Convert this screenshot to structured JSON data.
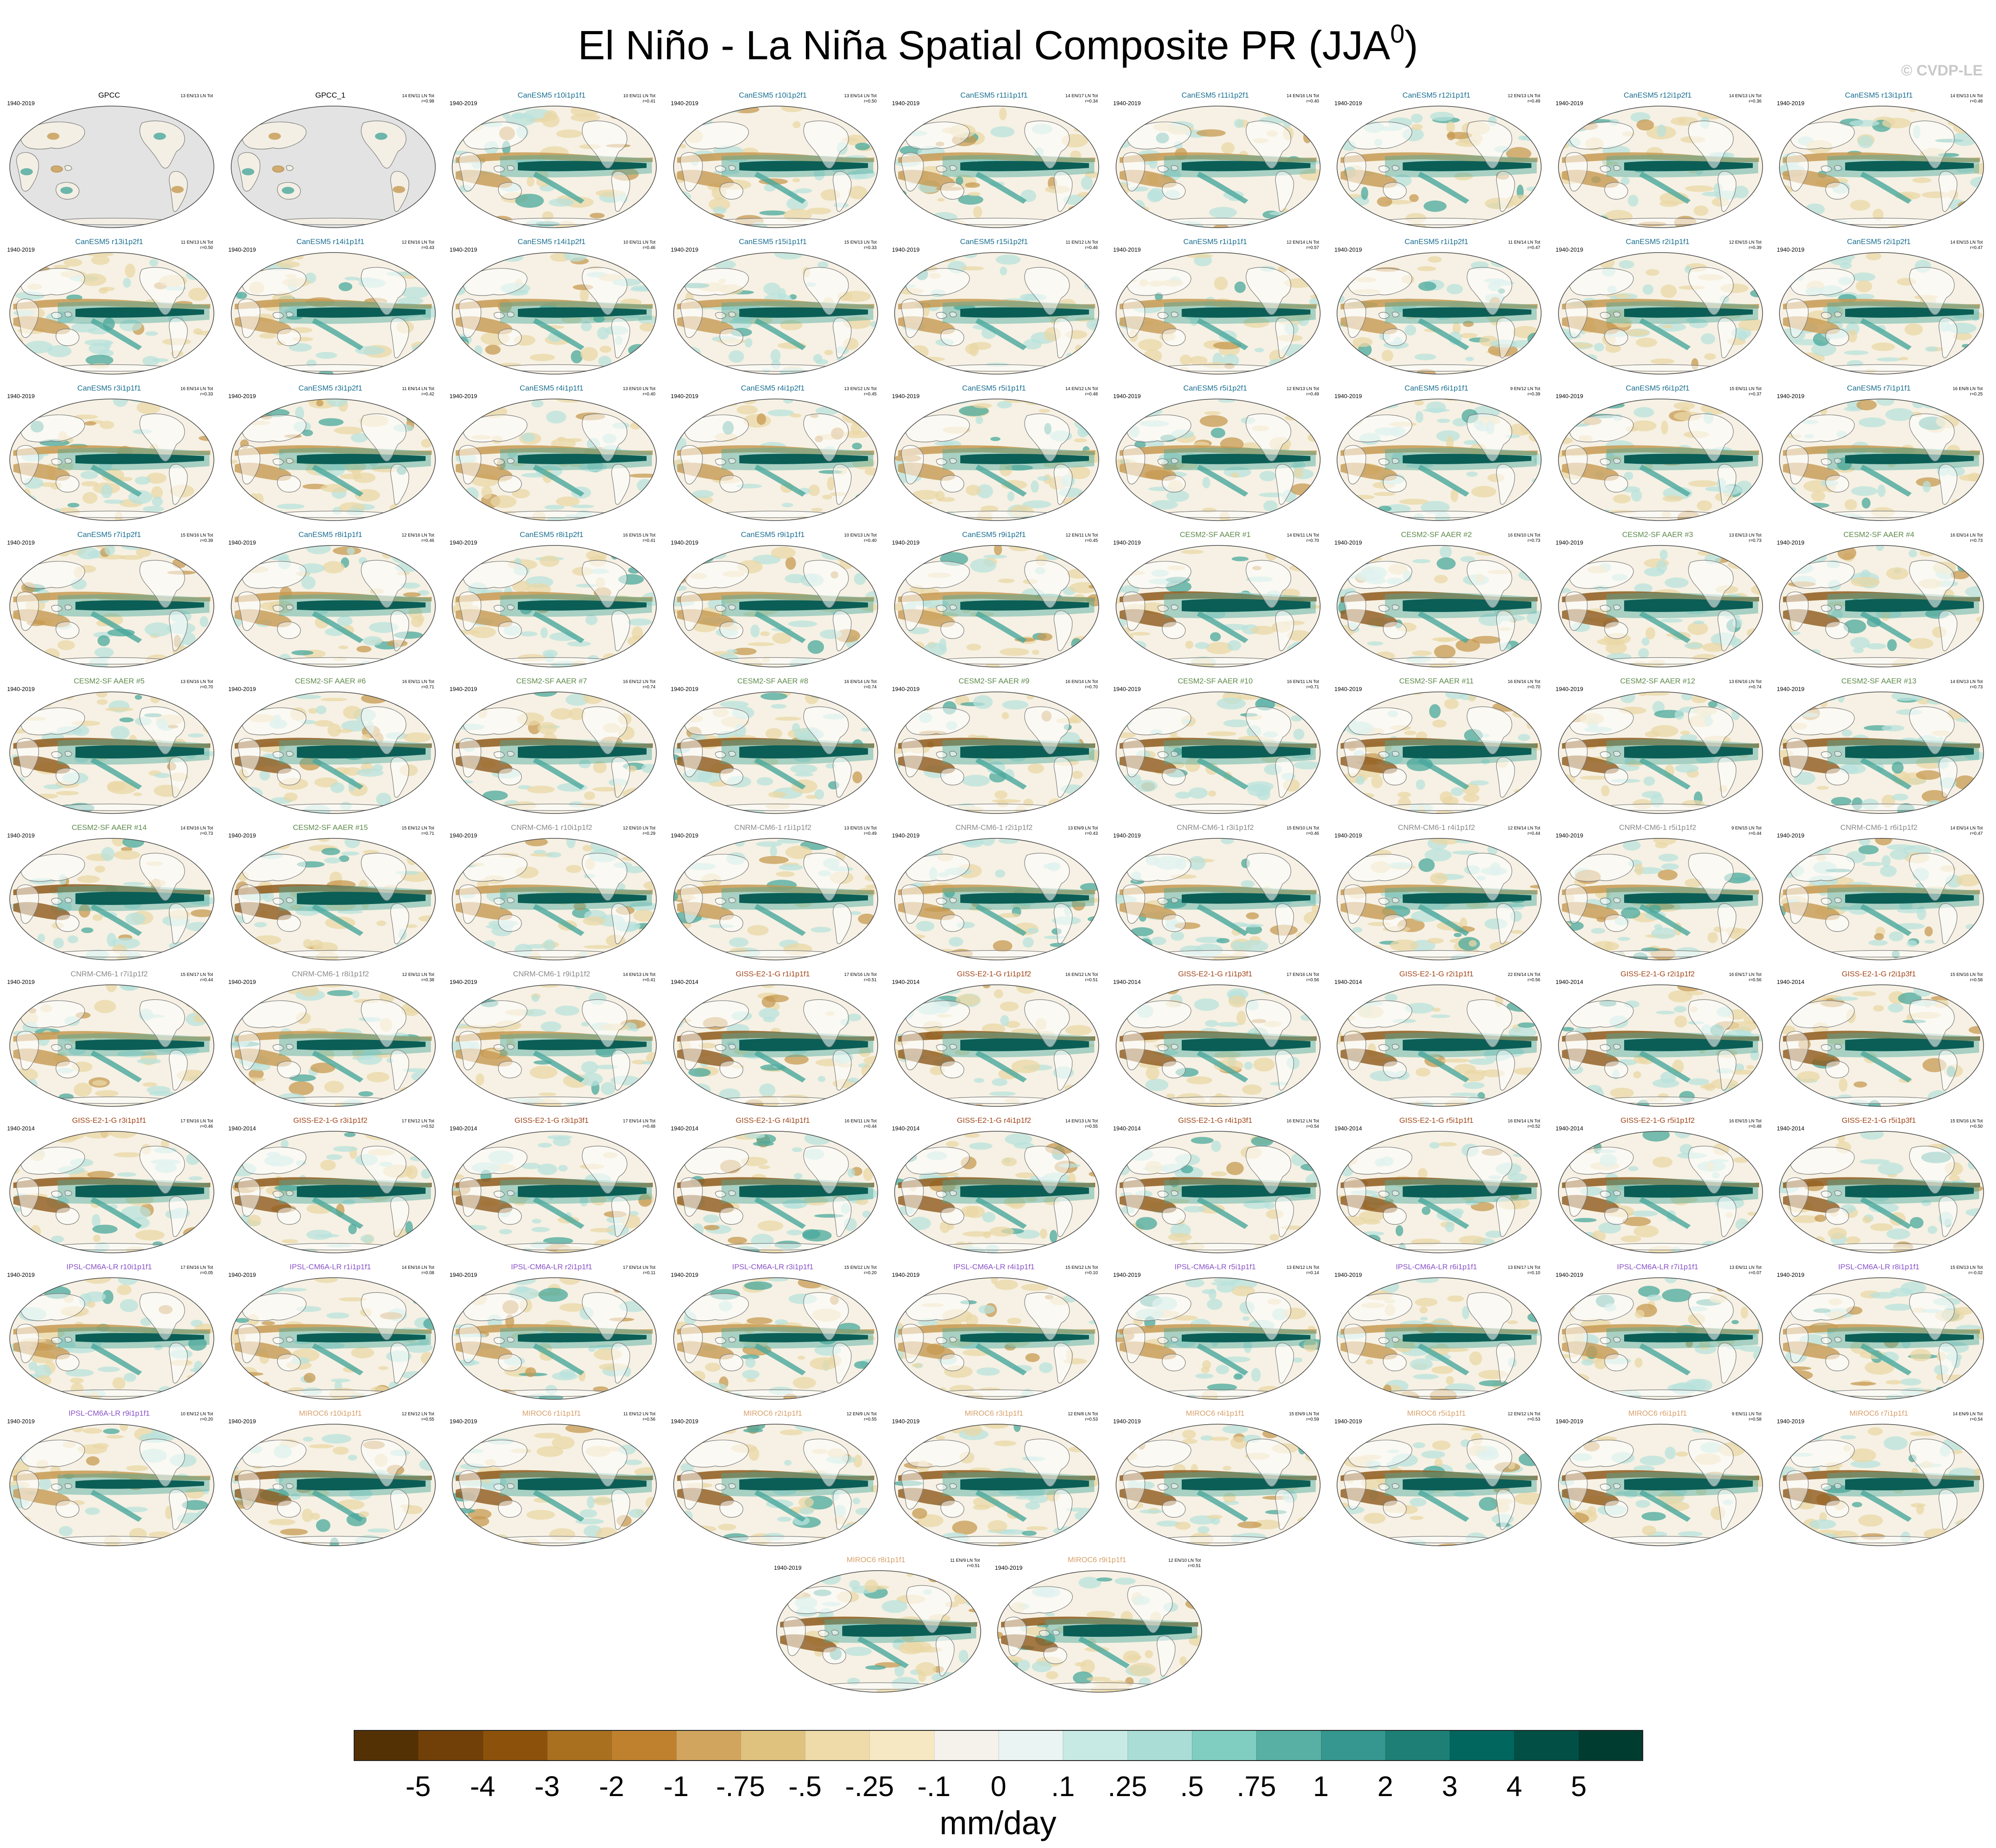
{
  "title": {
    "main": "El Niño - La Niña Spatial Composite PR (JJA",
    "superscript": "0",
    "close": ")"
  },
  "copyright": "© CVDP-LE",
  "colors": {
    "GPCC": "#000000",
    "CanESM5": "#1a6f91",
    "CESM2-SF AAER": "#5d8a4a",
    "CNRM-CM6-1": "#8a8a8a",
    "GISS-E2-1-G": "#a0461a",
    "IPSL-CM6A-LR": "#8a52c8",
    "MIROC6": "#d8a06a"
  },
  "map_style": {
    "ocean_base": "#f6f1e4",
    "land": "#ffffff",
    "missing": "#e3e3e3",
    "coast": "#7a7a7a",
    "dry_strong": "#8e5a1c",
    "dry_mid": "#c79a52",
    "dry_weak": "#ead7a6",
    "wet_weak": "#b8e2dc",
    "wet_mid": "#4aa89c",
    "wet_strong": "#0b5e56"
  },
  "panels": [
    {
      "name": "GPCC",
      "model": "GPCC",
      "period": "1940-2019",
      "counts": "13 EN/13 LN Tot",
      "r": "",
      "obs": true
    },
    {
      "name": "GPCC_1",
      "model": "GPCC",
      "period": "",
      "counts": "14 EN/11 LN Tot",
      "r": "r=0.98",
      "obs": true
    },
    {
      "name": "CanESM5 r10i1p1f1",
      "model": "CanESM5",
      "period": "1940-2019",
      "counts": "10 EN/11 LN Tot",
      "r": "r=0.41"
    },
    {
      "name": "CanESM5 r10i1p2f1",
      "model": "CanESM5",
      "period": "1940-2019",
      "counts": "13 EN/14 LN Tot",
      "r": "r=0.50"
    },
    {
      "name": "CanESM5 r11i1p1f1",
      "model": "CanESM5",
      "period": "1940-2019",
      "counts": "14 EN/17 LN Tot",
      "r": "r=0.34"
    },
    {
      "name": "CanESM5 r11i1p2f1",
      "model": "CanESM5",
      "period": "1940-2019",
      "counts": "14 EN/16 LN Tot",
      "r": "r=0.40"
    },
    {
      "name": "CanESM5 r12i1p1f1",
      "model": "CanESM5",
      "period": "1940-2019",
      "counts": "12 EN/13 LN Tot",
      "r": "r=0.49"
    },
    {
      "name": "CanESM5 r12i1p2f1",
      "model": "CanESM5",
      "period": "1940-2019",
      "counts": "14 EN/13 LN Tot",
      "r": "r=0.36"
    },
    {
      "name": "CanESM5 r13i1p1f1",
      "model": "CanESM5",
      "period": "1940-2019",
      "counts": "14 EN/13 LN Tot",
      "r": "r=0.48"
    },
    {
      "name": "CanESM5 r13i1p2f1",
      "model": "CanESM5",
      "period": "1940-2019",
      "counts": "11 EN/13 LN Tot",
      "r": "r=0.50"
    },
    {
      "name": "CanESM5 r14i1p1f1",
      "model": "CanESM5",
      "period": "1940-2019",
      "counts": "12 EN/16 LN Tot",
      "r": "r=0.43"
    },
    {
      "name": "CanESM5 r14i1p2f1",
      "model": "CanESM5",
      "period": "1940-2019",
      "counts": "10 EN/11 LN Tot",
      "r": "r=0.46"
    },
    {
      "name": "CanESM5 r15i1p1f1",
      "model": "CanESM5",
      "period": "1940-2019",
      "counts": "15 EN/13 LN Tot",
      "r": "r=0.33"
    },
    {
      "name": "CanESM5 r15i1p2f1",
      "model": "CanESM5",
      "period": "1940-2019",
      "counts": "11 EN/12 LN Tot",
      "r": "r=0.46"
    },
    {
      "name": "CanESM5 r1i1p1f1",
      "model": "CanESM5",
      "period": "1940-2019",
      "counts": "12 EN/14 LN Tot",
      "r": "r=0.57"
    },
    {
      "name": "CanESM5 r1i1p2f1",
      "model": "CanESM5",
      "period": "1940-2019",
      "counts": "11 EN/14 LN Tot",
      "r": "r=0.47"
    },
    {
      "name": "CanESM5 r2i1p1f1",
      "model": "CanESM5",
      "period": "1940-2019",
      "counts": "12 EN/15 LN Tot",
      "r": "r=0.39"
    },
    {
      "name": "CanESM5 r2i1p2f1",
      "model": "CanESM5",
      "period": "1940-2019",
      "counts": "14 EN/15 LN Tot",
      "r": "r=0.47"
    },
    {
      "name": "CanESM5 r3i1p1f1",
      "model": "CanESM5",
      "period": "1940-2019",
      "counts": "16 EN/14 LN Tot",
      "r": "r=0.33"
    },
    {
      "name": "CanESM5 r3i1p2f1",
      "model": "CanESM5",
      "period": "1940-2019",
      "counts": "11 EN/14 LN Tot",
      "r": "r=0.42"
    },
    {
      "name": "CanESM5 r4i1p1f1",
      "model": "CanESM5",
      "period": "1940-2019",
      "counts": "13 EN/10 LN Tot",
      "r": "r=0.40"
    },
    {
      "name": "CanESM5 r4i1p2f1",
      "model": "CanESM5",
      "period": "1940-2019",
      "counts": "13 EN/12 LN Tot",
      "r": "r=0.45"
    },
    {
      "name": "CanESM5 r5i1p1f1",
      "model": "CanESM5",
      "period": "1940-2019",
      "counts": "14 EN/12 LN Tot",
      "r": "r=0.48"
    },
    {
      "name": "CanESM5 r5i1p2f1",
      "model": "CanESM5",
      "period": "1940-2019",
      "counts": "12 EN/13 LN Tot",
      "r": "r=0.49"
    },
    {
      "name": "CanESM5 r6i1p1f1",
      "model": "CanESM5",
      "period": "1940-2019",
      "counts": "9 EN/12 LN Tot",
      "r": "r=0.39"
    },
    {
      "name": "CanESM5 r6i1p2f1",
      "model": "CanESM5",
      "period": "1940-2019",
      "counts": "15 EN/11 LN Tot",
      "r": "r=0.37"
    },
    {
      "name": "CanESM5 r7i1p1f1",
      "model": "CanESM5",
      "period": "1940-2019",
      "counts": "16 EN/8 LN Tot",
      "r": "r=0.25"
    },
    {
      "name": "CanESM5 r7i1p2f1",
      "model": "CanESM5",
      "period": "1940-2019",
      "counts": "15 EN/16 LN Tot",
      "r": "r=0.39"
    },
    {
      "name": "CanESM5 r8i1p1f1",
      "model": "CanESM5",
      "period": "1940-2019",
      "counts": "12 EN/16 LN Tot",
      "r": "r=0.46"
    },
    {
      "name": "CanESM5 r8i1p2f1",
      "model": "CanESM5",
      "period": "1940-2019",
      "counts": "16 EN/15 LN Tot",
      "r": "r=0.41"
    },
    {
      "name": "CanESM5 r9i1p1f1",
      "model": "CanESM5",
      "period": "1940-2019",
      "counts": "10 EN/13 LN Tot",
      "r": "r=0.40"
    },
    {
      "name": "CanESM5 r9i1p2f1",
      "model": "CanESM5",
      "period": "1940-2019",
      "counts": "12 EN/11 LN Tot",
      "r": "r=0.45"
    },
    {
      "name": "CESM2-SF AAER #1",
      "model": "CESM2-SF AAER",
      "period": "1940-2019",
      "counts": "14 EN/11 LN Tot",
      "r": "r=0.70"
    },
    {
      "name": "CESM2-SF AAER #2",
      "model": "CESM2-SF AAER",
      "period": "1940-2019",
      "counts": "16 EN/10 LN Tot",
      "r": "r=0.73"
    },
    {
      "name": "CESM2-SF AAER #3",
      "model": "CESM2-SF AAER",
      "period": "1940-2019",
      "counts": "13 EN/13 LN Tot",
      "r": "r=0.73"
    },
    {
      "name": "CESM2-SF AAER #4",
      "model": "CESM2-SF AAER",
      "period": "1940-2019",
      "counts": "16 EN/14 LN Tot",
      "r": "r=0.73"
    },
    {
      "name": "CESM2-SF AAER #5",
      "model": "CESM2-SF AAER",
      "period": "1940-2019",
      "counts": "13 EN/16 LN Tot",
      "r": "r=0.70"
    },
    {
      "name": "CESM2-SF AAER #6",
      "model": "CESM2-SF AAER",
      "period": "1940-2019",
      "counts": "16 EN/11 LN Tot",
      "r": "r=0.71"
    },
    {
      "name": "CESM2-SF AAER #7",
      "model": "CESM2-SF AAER",
      "period": "1940-2019",
      "counts": "16 EN/12 LN Tot",
      "r": "r=0.74"
    },
    {
      "name": "CESM2-SF AAER #8",
      "model": "CESM2-SF AAER",
      "period": "1940-2019",
      "counts": "16 EN/14 LN Tot",
      "r": "r=0.74"
    },
    {
      "name": "CESM2-SF AAER #9",
      "model": "CESM2-SF AAER",
      "period": "1940-2019",
      "counts": "16 EN/14 LN Tot",
      "r": "r=0.70"
    },
    {
      "name": "CESM2-SF AAER #10",
      "model": "CESM2-SF AAER",
      "period": "1940-2019",
      "counts": "16 EN/11 LN Tot",
      "r": "r=0.71"
    },
    {
      "name": "CESM2-SF AAER #11",
      "model": "CESM2-SF AAER",
      "period": "1940-2019",
      "counts": "16 EN/16 LN Tot",
      "r": "r=0.70"
    },
    {
      "name": "CESM2-SF AAER #12",
      "model": "CESM2-SF AAER",
      "period": "1940-2019",
      "counts": "13 EN/16 LN Tot",
      "r": "r=0.74"
    },
    {
      "name": "CESM2-SF AAER #13",
      "model": "CESM2-SF AAER",
      "period": "1940-2019",
      "counts": "14 EN/13 LN Tot",
      "r": "r=0.73"
    },
    {
      "name": "CESM2-SF AAER #14",
      "model": "CESM2-SF AAER",
      "period": "1940-2019",
      "counts": "14 EN/16 LN Tot",
      "r": "r=0.73"
    },
    {
      "name": "CESM2-SF AAER #15",
      "model": "CESM2-SF AAER",
      "period": "1940-2019",
      "counts": "15 EN/12 LN Tot",
      "r": "r=0.71"
    },
    {
      "name": "CNRM-CM6-1 r10i1p1f2",
      "model": "CNRM-CM6-1",
      "period": "1940-2019",
      "counts": "12 EN/10 LN Tot",
      "r": "r=0.29"
    },
    {
      "name": "CNRM-CM6-1 r1i1p1f2",
      "model": "CNRM-CM6-1",
      "period": "1940-2019",
      "counts": "13 EN/15 LN Tot",
      "r": "r=0.49"
    },
    {
      "name": "CNRM-CM6-1 r2i1p1f2",
      "model": "CNRM-CM6-1",
      "period": "1940-2019",
      "counts": "13 EN/9 LN Tot",
      "r": "r=0.43"
    },
    {
      "name": "CNRM-CM6-1 r3i1p1f2",
      "model": "CNRM-CM6-1",
      "period": "1940-2019",
      "counts": "15 EN/10 LN Tot",
      "r": "r=0.46"
    },
    {
      "name": "CNRM-CM6-1 r4i1p1f2",
      "model": "CNRM-CM6-1",
      "period": "1940-2019",
      "counts": "12 EN/14 LN Tot",
      "r": "r=0.44"
    },
    {
      "name": "CNRM-CM6-1 r5i1p1f2",
      "model": "CNRM-CM6-1",
      "period": "1940-2019",
      "counts": "9 EN/15 LN Tot",
      "r": "r=0.44"
    },
    {
      "name": "CNRM-CM6-1 r6i1p1f2",
      "model": "CNRM-CM6-1",
      "period": "1940-2019",
      "counts": "14 EN/14 LN Tot",
      "r": "r=0.47"
    },
    {
      "name": "CNRM-CM6-1 r7i1p1f2",
      "model": "CNRM-CM6-1",
      "period": "1940-2019",
      "counts": "15 EN/17 LN Tot",
      "r": "r=0.44"
    },
    {
      "name": "CNRM-CM6-1 r8i1p1f2",
      "model": "CNRM-CM6-1",
      "period": "1940-2019",
      "counts": "12 EN/11 LN Tot",
      "r": "r=0.38"
    },
    {
      "name": "CNRM-CM6-1 r9i1p1f2",
      "model": "CNRM-CM6-1",
      "period": "1940-2019",
      "counts": "14 EN/13 LN Tot",
      "r": "r=0.41"
    },
    {
      "name": "GISS-E2-1-G r1i1p1f1",
      "model": "GISS-E2-1-G",
      "period": "1940-2014",
      "counts": "17 EN/16 LN Tot",
      "r": "r=0.51"
    },
    {
      "name": "GISS-E2-1-G r1i1p1f2",
      "model": "GISS-E2-1-G",
      "period": "1940-2014",
      "counts": "16 EN/12 LN Tot",
      "r": "r=0.51"
    },
    {
      "name": "GISS-E2-1-G r1i1p3f1",
      "model": "GISS-E2-1-G",
      "period": "1940-2014",
      "counts": "17 EN/16 LN Tot",
      "r": "r=0.56"
    },
    {
      "name": "GISS-E2-1-G r2i1p1f1",
      "model": "GISS-E2-1-G",
      "period": "1940-2014",
      "counts": "22 EN/14 LN Tot",
      "r": "r=0.56"
    },
    {
      "name": "GISS-E2-1-G r2i1p1f2",
      "model": "GISS-E2-1-G",
      "period": "1940-2014",
      "counts": "16 EN/17 LN Tot",
      "r": "r=0.56"
    },
    {
      "name": "GISS-E2-1-G r2i1p3f1",
      "model": "GISS-E2-1-G",
      "period": "1940-2014",
      "counts": "15 EN/16 LN Tot",
      "r": "r=0.58"
    },
    {
      "name": "GISS-E2-1-G r3i1p1f1",
      "model": "GISS-E2-1-G",
      "period": "1940-2014",
      "counts": "17 EN/16 LN Tot",
      "r": "r=0.46"
    },
    {
      "name": "GISS-E2-1-G r3i1p1f2",
      "model": "GISS-E2-1-G",
      "period": "1940-2014",
      "counts": "17 EN/12 LN Tot",
      "r": "r=0.52"
    },
    {
      "name": "GISS-E2-1-G r3i1p3f1",
      "model": "GISS-E2-1-G",
      "period": "1940-2014",
      "counts": "17 EN/14 LN Tot",
      "r": "r=0.48"
    },
    {
      "name": "GISS-E2-1-G r4i1p1f1",
      "model": "GISS-E2-1-G",
      "period": "1940-2014",
      "counts": "16 EN/11 LN Tot",
      "r": "r=0.44"
    },
    {
      "name": "GISS-E2-1-G r4i1p1f2",
      "model": "GISS-E2-1-G",
      "period": "1940-2014",
      "counts": "14 EN/13 LN Tot",
      "r": "r=0.55"
    },
    {
      "name": "GISS-E2-1-G r4i1p3f1",
      "model": "GISS-E2-1-G",
      "period": "1940-2014",
      "counts": "16 EN/12 LN Tot",
      "r": "r=0.54"
    },
    {
      "name": "GISS-E2-1-G r5i1p1f1",
      "model": "GISS-E2-1-G",
      "period": "1940-2014",
      "counts": "16 EN/14 LN Tot",
      "r": "r=0.52"
    },
    {
      "name": "GISS-E2-1-G r5i1p1f2",
      "model": "GISS-E2-1-G",
      "period": "1940-2014",
      "counts": "16 EN/15 LN Tot",
      "r": "r=0.48"
    },
    {
      "name": "GISS-E2-1-G r5i1p3f1",
      "model": "GISS-E2-1-G",
      "period": "1940-2014",
      "counts": "15 EN/16 LN Tot",
      "r": "r=0.50"
    },
    {
      "name": "IPSL-CM6A-LR r10i1p1f1",
      "model": "IPSL-CM6A-LR",
      "period": "1940-2019",
      "counts": "17 EN/16 LN Tot",
      "r": "r=0.05"
    },
    {
      "name": "IPSL-CM6A-LR r1i1p1f1",
      "model": "IPSL-CM6A-LR",
      "period": "1940-2019",
      "counts": "14 EN/16 LN Tot",
      "r": "r=0.08"
    },
    {
      "name": "IPSL-CM6A-LR r2i1p1f1",
      "model": "IPSL-CM6A-LR",
      "period": "1940-2019",
      "counts": "17 EN/14 LN Tot",
      "r": "r=0.11"
    },
    {
      "name": "IPSL-CM6A-LR r3i1p1f1",
      "model": "IPSL-CM6A-LR",
      "period": "1940-2019",
      "counts": "15 EN/12 LN Tot",
      "r": "r=0.20"
    },
    {
      "name": "IPSL-CM6A-LR r4i1p1f1",
      "model": "IPSL-CM6A-LR",
      "period": "1940-2019",
      "counts": "15 EN/12 LN Tot",
      "r": "r=0.10"
    },
    {
      "name": "IPSL-CM6A-LR r5i1p1f1",
      "model": "IPSL-CM6A-LR",
      "period": "1940-2019",
      "counts": "13 EN/12 LN Tot",
      "r": "r=0.14"
    },
    {
      "name": "IPSL-CM6A-LR r6i1p1f1",
      "model": "IPSL-CM6A-LR",
      "period": "1940-2019",
      "counts": "13 EN/17 LN Tot",
      "r": "r=0.10"
    },
    {
      "name": "IPSL-CM6A-LR r7i1p1f1",
      "model": "IPSL-CM6A-LR",
      "period": "1940-2019",
      "counts": "13 EN/11 LN Tot",
      "r": "r=0.07"
    },
    {
      "name": "IPSL-CM6A-LR r8i1p1f1",
      "model": "IPSL-CM6A-LR",
      "period": "1940-2019",
      "counts": "15 EN/13 LN Tot",
      "r": "r=-0.02"
    },
    {
      "name": "IPSL-CM6A-LR r9i1p1f1",
      "model": "IPSL-CM6A-LR",
      "period": "1940-2019",
      "counts": "10 EN/12 LN Tot",
      "r": "r=0.20"
    },
    {
      "name": "MIROC6 r10i1p1f1",
      "model": "MIROC6",
      "period": "1940-2019",
      "counts": "12 EN/12 LN Tot",
      "r": "r=0.55"
    },
    {
      "name": "MIROC6 r1i1p1f1",
      "model": "MIROC6",
      "period": "1940-2019",
      "counts": "11 EN/12 LN Tot",
      "r": "r=0.56"
    },
    {
      "name": "MIROC6 r2i1p1f1",
      "model": "MIROC6",
      "period": "1940-2019",
      "counts": "12 EN/9 LN Tot",
      "r": "r=0.55"
    },
    {
      "name": "MIROC6 r3i1p1f1",
      "model": "MIROC6",
      "period": "1940-2019",
      "counts": "12 EN/8 LN Tot",
      "r": "r=0.53"
    },
    {
      "name": "MIROC6 r4i1p1f1",
      "model": "MIROC6",
      "period": "1940-2019",
      "counts": "15 EN/9 LN Tot",
      "r": "r=0.59"
    },
    {
      "name": "MIROC6 r5i1p1f1",
      "model": "MIROC6",
      "period": "1940-2019",
      "counts": "12 EN/12 LN Tot",
      "r": "r=0.53"
    },
    {
      "name": "MIROC6 r6i1p1f1",
      "model": "MIROC6",
      "period": "1940-2019",
      "counts": "9 EN/11 LN Tot",
      "r": "r=0.58"
    },
    {
      "name": "MIROC6 r7i1p1f1",
      "model": "MIROC6",
      "period": "1940-2019",
      "counts": "14 EN/9 LN Tot",
      "r": "r=0.54"
    },
    {
      "name": "MIROC6 r8i1p1f1",
      "model": "MIROC6",
      "period": "1940-2019",
      "counts": "11 EN/9 LN Tot",
      "r": "r=0.51"
    },
    {
      "name": "MIROC6 r9i1p1f1",
      "model": "MIROC6",
      "period": "1940-2019",
      "counts": "12 EN/10 LN Tot",
      "r": "r=0.51"
    }
  ],
  "colorbar": {
    "colors": [
      "#543005",
      "#704008",
      "#8c510a",
      "#a8701f",
      "#bf812d",
      "#d1a55e",
      "#dfc27d",
      "#eedba9",
      "#f6e8c3",
      "#f5f2ec",
      "#eaf4f2",
      "#c7eae5",
      "#a9ddd5",
      "#80cdc1",
      "#58b0a4",
      "#35978f",
      "#1d7f76",
      "#01665e",
      "#024f46",
      "#003c30"
    ],
    "labels": [
      "-5",
      "-4",
      "-3",
      "-2",
      "-1",
      "-.75",
      "-.5",
      "-.25",
      "-.1",
      "0",
      ".1",
      ".25",
      ".5",
      ".75",
      "1",
      "2",
      "3",
      "4",
      "5"
    ],
    "units": "mm/day"
  }
}
